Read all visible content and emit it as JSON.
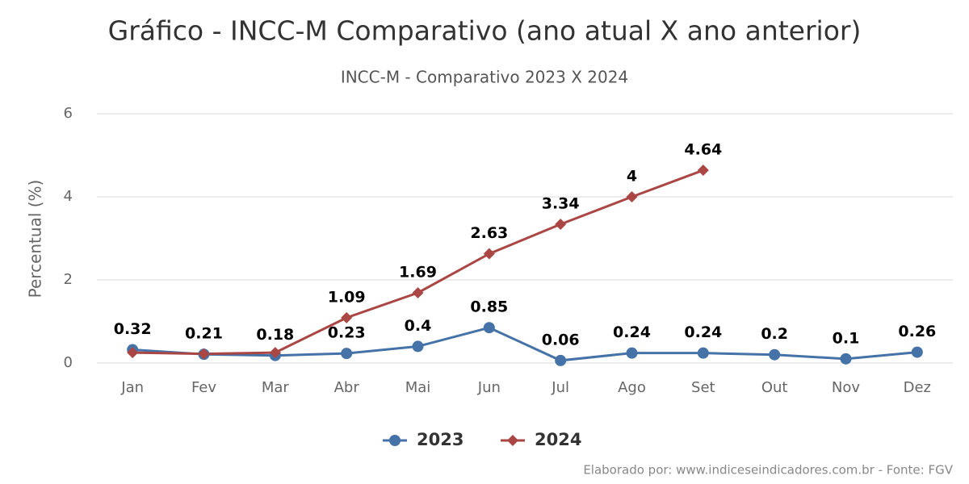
{
  "chart_data": {
    "type": "line",
    "title": "Gráfico - INCC-M Comparativo (ano atual X ano anterior)",
    "subtitle": "INCC-M - Comparativo 2023 X 2024",
    "y_label": "Percentual (%)",
    "categories": [
      "Jan",
      "Fev",
      "Mar",
      "Abr",
      "Mai",
      "Jun",
      "Jul",
      "Ago",
      "Set",
      "Out",
      "Nov",
      "Dez"
    ],
    "series": [
      {
        "name": "2023",
        "color": "#4572a7",
        "marker": "circle",
        "values": [
          0.32,
          0.21,
          0.18,
          0.23,
          0.4,
          0.85,
          0.06,
          0.24,
          0.24,
          0.2,
          0.1,
          0.26
        ]
      },
      {
        "name": "2024",
        "color": "#aa4643",
        "marker": "diamond",
        "values": [
          0.25,
          0.22,
          0.25,
          1.09,
          1.69,
          2.63,
          3.34,
          4,
          4.64,
          null,
          null,
          null
        ],
        "value_labels": [
          null,
          null,
          null,
          "1.09",
          "1.69",
          "2.63",
          "3.34",
          "4",
          "4.64",
          null,
          null,
          null
        ]
      }
    ],
    "ylim": [
      0,
      6
    ],
    "yticks": [
      0,
      2,
      4,
      6
    ],
    "grid": true,
    "legend": "bottom",
    "credit": "Elaborado por: www.indiceseindicadores.com.br - Fonte: FGV"
  }
}
